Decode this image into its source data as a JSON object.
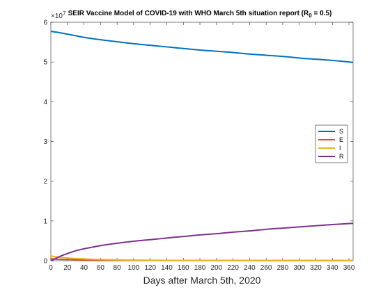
{
  "chart_data": {
    "type": "line",
    "title": "SEIR Vaccine Model of COVID-19 with WHO March 5th situation report (R",
    "title_subscript": "0",
    "title_suffix": " = 0.5)",
    "xlabel": "Days after March 5th, 2020",
    "ylabel": "",
    "xlim": [
      0,
      365
    ],
    "ylim": [
      0,
      6
    ],
    "y_exponent_label": "×10",
    "y_exponent": "7",
    "x_ticks": [
      "0",
      "20",
      "40",
      "60",
      "80",
      "100",
      "120",
      "140",
      "160",
      "180",
      "200",
      "220",
      "240",
      "260",
      "280",
      "300",
      "320",
      "340",
      "360"
    ],
    "y_ticks": [
      "0",
      "1",
      "2",
      "3",
      "4",
      "5",
      "6"
    ],
    "grid": false,
    "legend_position": "right",
    "series": [
      {
        "name": "S",
        "color": "#0072BD",
        "x": [
          0,
          10,
          20,
          30,
          40,
          60,
          80,
          100,
          120,
          140,
          160,
          180,
          200,
          220,
          240,
          260,
          280,
          300,
          320,
          340,
          365
        ],
        "y": [
          5.77,
          5.74,
          5.7,
          5.66,
          5.62,
          5.56,
          5.51,
          5.46,
          5.42,
          5.38,
          5.34,
          5.3,
          5.27,
          5.24,
          5.2,
          5.17,
          5.14,
          5.1,
          5.07,
          5.04,
          4.99
        ]
      },
      {
        "name": "E",
        "color": "#D95319",
        "x": [
          0,
          5,
          10,
          20,
          30,
          40,
          60,
          80,
          100,
          140,
          200,
          365
        ],
        "y": [
          0.05,
          0.04,
          0.035,
          0.03,
          0.025,
          0.02,
          0.015,
          0.012,
          0.01,
          0.008,
          0.006,
          0.004
        ]
      },
      {
        "name": "I",
        "color": "#EDB120",
        "x": [
          0,
          5,
          10,
          20,
          30,
          40,
          60,
          80,
          100,
          140,
          200,
          365
        ],
        "y": [
          0.12,
          0.1,
          0.085,
          0.07,
          0.055,
          0.045,
          0.03,
          0.022,
          0.016,
          0.01,
          0.007,
          0.004
        ]
      },
      {
        "name": "R",
        "color": "#7E2F8E",
        "x": [
          0,
          5,
          10,
          20,
          30,
          40,
          50,
          60,
          80,
          100,
          120,
          140,
          160,
          180,
          200,
          220,
          240,
          260,
          280,
          300,
          320,
          340,
          365
        ],
        "y": [
          0.0,
          0.05,
          0.1,
          0.18,
          0.25,
          0.3,
          0.34,
          0.38,
          0.44,
          0.49,
          0.53,
          0.57,
          0.61,
          0.65,
          0.68,
          0.72,
          0.75,
          0.79,
          0.82,
          0.85,
          0.88,
          0.91,
          0.94
        ]
      }
    ]
  }
}
